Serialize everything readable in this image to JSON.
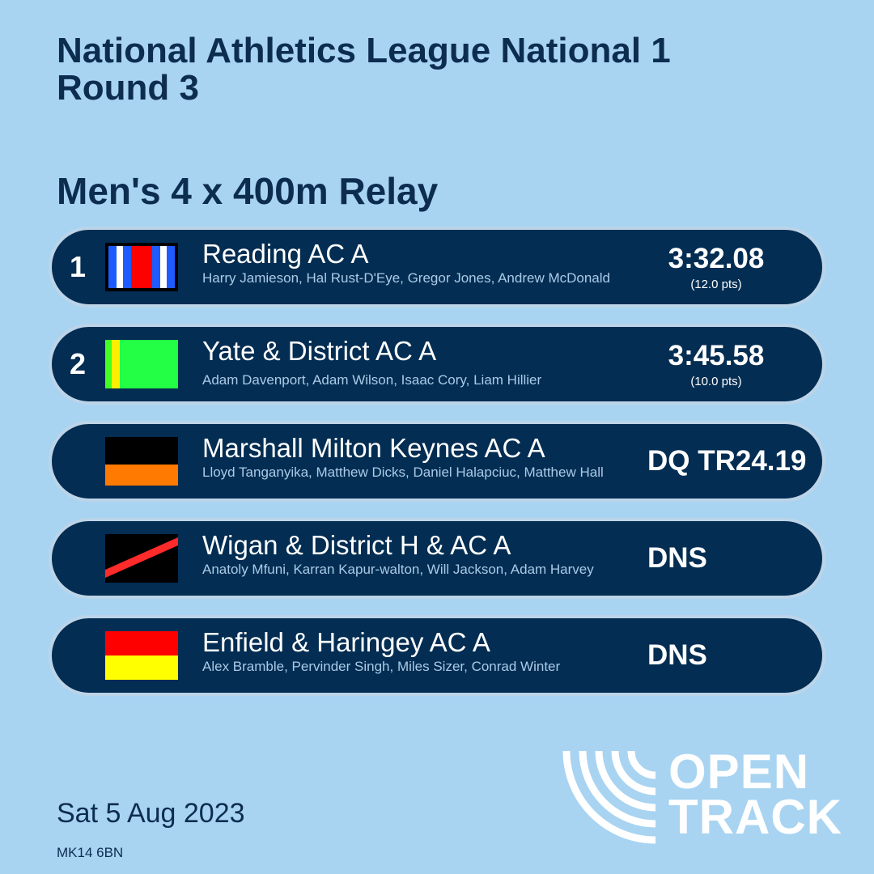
{
  "header": {
    "title": "National Athletics League National 1 Round 3",
    "event": "Men's 4 x 400m Relay"
  },
  "results": [
    {
      "position": "1",
      "team": "Reading AC A",
      "athletes": "Harry Jamieson, Hal Rust-D'Eye, Gregor Jones, Andrew McDonald",
      "mark": "3:32.08",
      "points": "(12.0 pts)",
      "flag_icon": "club-colours-blue-white-red-icon"
    },
    {
      "position": "2",
      "team": "Yate & District AC A",
      "athletes": "Adam Davenport, Adam Wilson, Isaac Cory, Liam Hillier",
      "mark": "3:45.58",
      "points": "(10.0 pts)",
      "flag_icon": "club-colours-green-yellow-icon"
    },
    {
      "position": "",
      "team": "Marshall Milton Keynes AC A",
      "athletes": "Lloyd Tanganyika, Matthew Dicks, Daniel Halapciuc, Matthew Hall",
      "mark": "DQ TR24.19",
      "points": "",
      "flag_icon": "club-colours-black-orange-icon"
    },
    {
      "position": "",
      "team": "Wigan & District H & AC A",
      "athletes": "Anatoly Mfuni, Karran Kapur-walton, Will Jackson, Adam Harvey",
      "mark": "DNS",
      "points": "",
      "flag_icon": "club-colours-black-red-sash-icon"
    },
    {
      "position": "",
      "team": "Enfield & Haringey AC A",
      "athletes": "Alex Bramble, Pervinder Singh, Miles Sizer, Conrad Winter",
      "mark": "DNS",
      "points": "",
      "flag_icon": "club-colours-red-yellow-icon"
    }
  ],
  "footer": {
    "date": "Sat 5 Aug 2023",
    "postcode": "MK14 6BN",
    "logo_line1": "OPEN",
    "logo_line2": "TRACK"
  },
  "colors": {
    "background": "#a8d4f2",
    "row_background": "#032d52",
    "title_text": "#0d2d4f",
    "athlete_text": "#aacbe8"
  }
}
